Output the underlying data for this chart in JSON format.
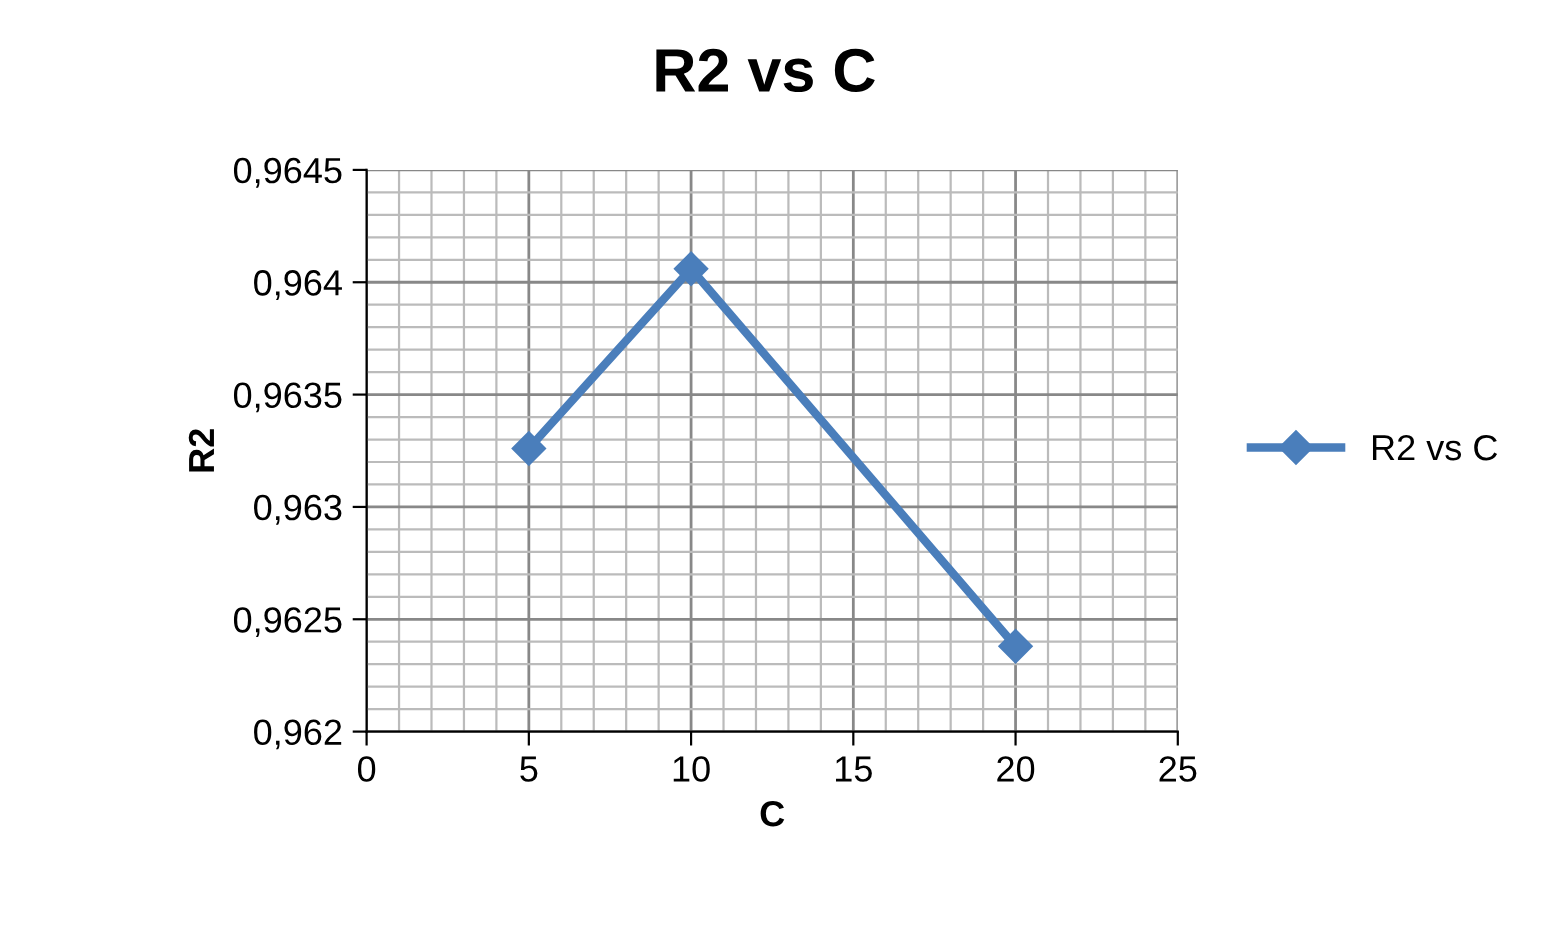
{
  "chart_data": {
    "type": "line",
    "title": "R2 vs C",
    "xlabel": "C",
    "ylabel": "R2",
    "series": [
      {
        "name": "R2 vs C",
        "color": "#4a7ebb",
        "x": [
          5,
          10,
          20
        ],
        "values": [
          0.96326,
          0.96406,
          0.96238
        ]
      }
    ],
    "xlim": [
      0,
      25
    ],
    "xticks": [
      0,
      5,
      10,
      15,
      20,
      25
    ],
    "ylim": [
      0.962,
      0.9645
    ],
    "yticks": [
      {
        "value": 0.962,
        "label": "0,962"
      },
      {
        "value": 0.9625,
        "label": "0,9625"
      },
      {
        "value": 0.963,
        "label": "0,963"
      },
      {
        "value": 0.9635,
        "label": "0,9635"
      },
      {
        "value": 0.964,
        "label": "0,964"
      },
      {
        "value": 0.9645,
        "label": "0,9645"
      }
    ],
    "grid": true,
    "legend": "right",
    "marker": "diamond",
    "line_style": "solid"
  }
}
